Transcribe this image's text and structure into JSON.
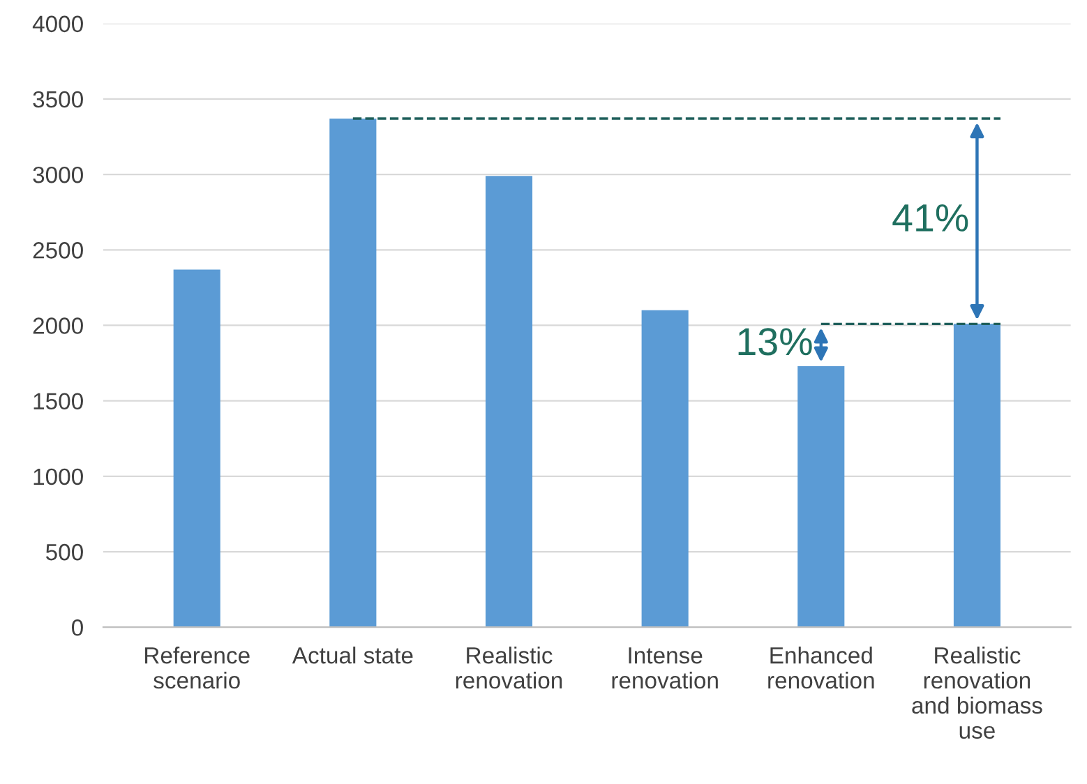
{
  "chart_data": {
    "type": "bar",
    "categories": [
      "Reference\nscenario",
      "Actual state",
      "Realistic\nrenovation",
      "Intense\nrenovation",
      "Enhanced\nrenovation",
      "Realistic\nrenovation\nand biomass\nuse"
    ],
    "values": [
      2370,
      3370,
      2990,
      2100,
      1730,
      2010
    ],
    "color": "#5b9bd5",
    "ylim": [
      0,
      4000
    ],
    "yticks": [
      0,
      500,
      1000,
      1500,
      2000,
      2500,
      3000,
      3500,
      4000
    ],
    "grid": "y",
    "ref_lines": [
      {
        "axis": "y",
        "value": 3370,
        "label": null,
        "color": "#1f5f5b",
        "line_style": "dashed"
      },
      {
        "axis": "y",
        "value": 2010,
        "label": null,
        "color": "#1f5f5b",
        "line_style": "dashed"
      }
    ],
    "annotations": [
      "41%",
      "13%"
    ]
  }
}
